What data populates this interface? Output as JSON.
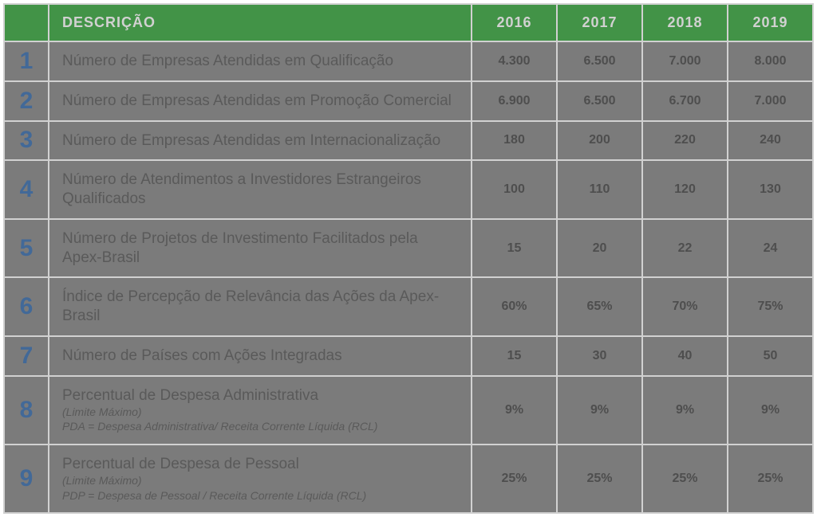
{
  "colors": {
    "header_bg": "#3aa940",
    "header_text": "#ffffff",
    "row_bg": "#888888",
    "num_color": "#3a6fb0",
    "desc_color": "#5a5a5a",
    "val_color": "#4a4a4a",
    "border": "#ffffff"
  },
  "fontsizes": {
    "header": 18,
    "row_num": 30,
    "desc": 19,
    "sub_note": 14,
    "value": 16
  },
  "header": {
    "desc_label": "DESCRIÇÃO",
    "years": [
      "2016",
      "2017",
      "2018",
      "2019"
    ]
  },
  "rows": [
    {
      "n": "1",
      "desc": "Número de Empresas Atendidas em Qualificação",
      "vals": [
        "4.300",
        "6.500",
        "7.000",
        "8.000"
      ]
    },
    {
      "n": "2",
      "desc": "Número de Empresas Atendidas em Promoção Comercial",
      "vals": [
        "6.900",
        "6.500",
        "6.700",
        "7.000"
      ]
    },
    {
      "n": "3",
      "desc": "Número de Empresas Atendidas em Internacionalização",
      "vals": [
        "180",
        "200",
        "220",
        "240"
      ]
    },
    {
      "n": "4",
      "desc": "Número de Atendimentos a Investidores Estrangeiros Qualificados",
      "vals": [
        "100",
        "110",
        "120",
        "130"
      ]
    },
    {
      "n": "5",
      "desc": "Número de Projetos de Investimento Facilitados pela Apex-Brasil",
      "vals": [
        "15",
        "20",
        "22",
        "24"
      ]
    },
    {
      "n": "6",
      "desc": "Índice de Percepção de Relevância das Ações da Apex-Brasil",
      "vals": [
        "60%",
        "65%",
        "70%",
        "75%"
      ]
    },
    {
      "n": "7",
      "desc": "Número de Países com Ações Integradas",
      "vals": [
        "15",
        "30",
        "40",
        "50"
      ]
    },
    {
      "n": "8",
      "desc": "Percentual de Despesa Administrativa",
      "sub1": "(Limite Máximo)",
      "sub2": "PDA = Despesa Administrativa/ Receita Corrente Líquida (RCL)",
      "vals": [
        "9%",
        "9%",
        "9%",
        "9%"
      ]
    },
    {
      "n": "9",
      "desc": "Percentual de Despesa de Pessoal",
      "sub1": "(Limite Máximo)",
      "sub2": "PDP = Despesa de Pessoal / Receita Corrente Líquida (RCL)",
      "vals": [
        "25%",
        "25%",
        "25%",
        "25%"
      ]
    }
  ]
}
